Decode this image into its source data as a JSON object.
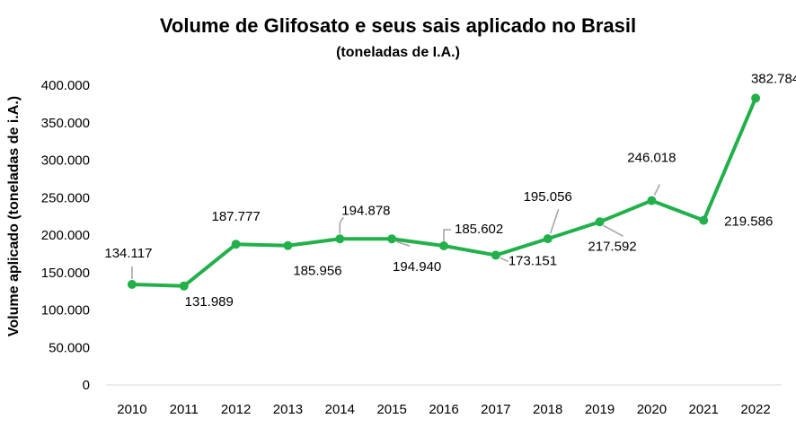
{
  "chart_data": {
    "type": "line",
    "title": "Volume de Glifosato e seus sais aplicado no Brasil",
    "subtitle": "(toneladas de I.A.)",
    "xlabel": "",
    "ylabel": "Volume aplicado (toneladas de i.A.)",
    "categories": [
      "2010",
      "2011",
      "2012",
      "2013",
      "2014",
      "2015",
      "2016",
      "2017",
      "2018",
      "2019",
      "2020",
      "2021",
      "2022"
    ],
    "values": [
      134117,
      131989,
      187777,
      185956,
      194878,
      194940,
      185602,
      173151,
      195056,
      217592,
      246018,
      219586,
      382784
    ],
    "data_labels": [
      "134.117",
      "131.989",
      "187.777",
      "185.956",
      "194.878",
      "194.940",
      "185.602",
      "173.151",
      "195.056",
      "217.592",
      "246.018",
      "219.586",
      "382.784"
    ],
    "ylim": [
      0,
      400000
    ],
    "yticks": [
      0,
      50000,
      100000,
      150000,
      200000,
      250000,
      300000,
      350000,
      400000
    ],
    "ytick_labels": [
      "0",
      "50.000",
      "100.000",
      "150.000",
      "200.000",
      "250.000",
      "300.000",
      "350.000",
      "400.000"
    ],
    "grid": false,
    "legend": "none",
    "line_color": "#22b04b",
    "leader_color": "#a6a6a6"
  }
}
